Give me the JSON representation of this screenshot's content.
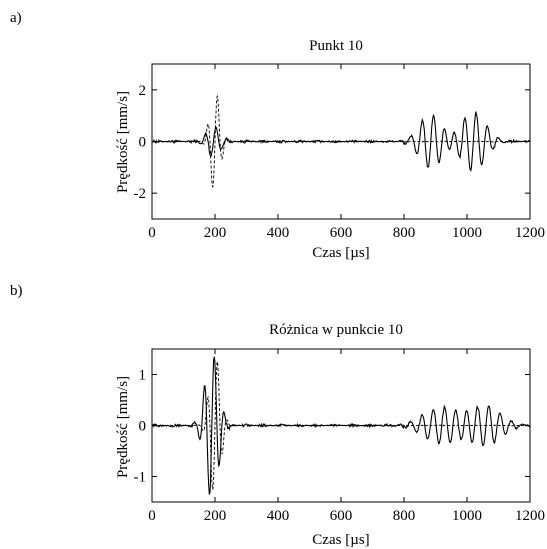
{
  "chart_data": [
    {
      "type": "line",
      "panel_label": "a)",
      "title": "Punkt 10",
      "xlabel": "Czas [µs]",
      "ylabel": "Prędkość [mm/s]",
      "xlim": [
        0,
        1200
      ],
      "ylim": [
        -3,
        3
      ],
      "xticks": [
        "0",
        "200",
        "400",
        "600",
        "800",
        "1000",
        "1200"
      ],
      "yticks": [
        "2",
        "0",
        "-2"
      ],
      "grid": false,
      "series": [
        {
          "style": "solid",
          "wave_packets": [
            {
              "center": 195,
              "width": 30,
              "amplitude": 0.6,
              "period": 34
            },
            {
              "center": 885,
              "width": 50,
              "amplitude": 1.05,
              "period": 36
            },
            {
              "center": 1020,
              "width": 55,
              "amplitude": 1.15,
              "period": 36
            }
          ],
          "noise_amplitude": 0.06
        },
        {
          "style": "dashed",
          "wave_packets": [
            {
              "center": 200,
              "width": 22,
              "amplitude": 2.0,
              "period": 32
            }
          ],
          "noise_amplitude": 0.02
        }
      ]
    },
    {
      "type": "line",
      "panel_label": "b)",
      "title": "Różnica w punkcie 10",
      "xlabel": "Czas [µs]",
      "ylabel": "Prędkość [mm/s]",
      "xlim": [
        0,
        1200
      ],
      "ylim": [
        -1.5,
        1.5
      ],
      "xticks": [
        "0",
        "200",
        "400",
        "600",
        "800",
        "1000",
        "1200"
      ],
      "yticks": [
        "1",
        "0",
        "-1"
      ],
      "grid": false,
      "series": [
        {
          "style": "solid",
          "wave_packets": [
            {
              "center": 190,
              "width": 30,
              "amplitude": 1.45,
              "period": 32
            },
            {
              "center": 920,
              "width": 80,
              "amplitude": 0.35,
              "period": 36
            },
            {
              "center": 1060,
              "width": 70,
              "amplitude": 0.38,
              "period": 36
            }
          ],
          "noise_amplitude": 0.03
        },
        {
          "style": "dashed",
          "wave_packets": [
            {
              "center": 200,
              "width": 24,
              "amplitude": 1.4,
              "period": 32
            }
          ],
          "noise_amplitude": 0.01
        }
      ]
    }
  ]
}
